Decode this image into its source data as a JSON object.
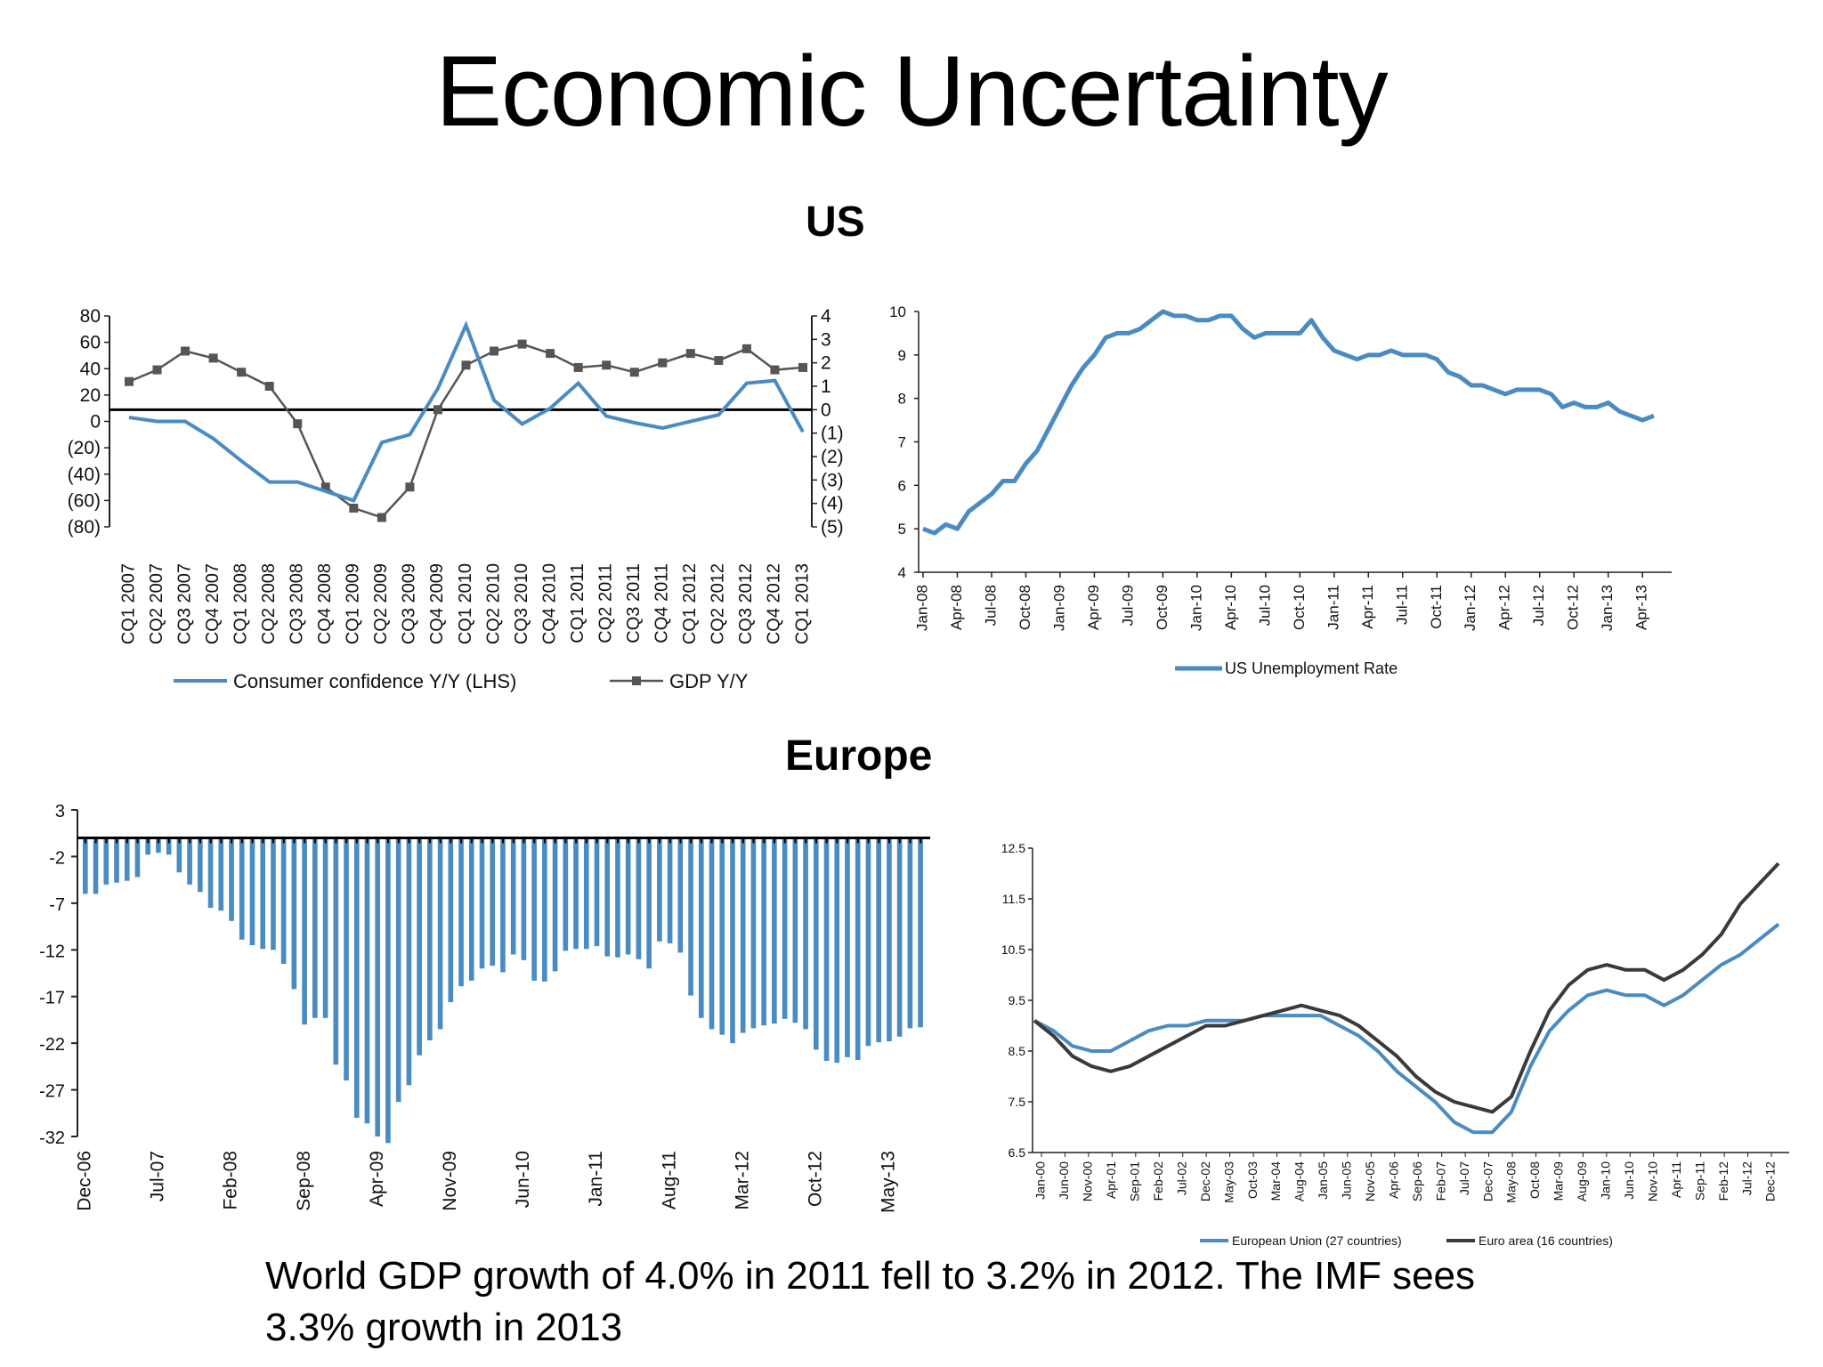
{
  "slide": {
    "title": "Economic Uncertainty",
    "us_heading": "US",
    "europe_heading": "Europe",
    "caption": "World GDP growth of 4.0% in 2011 fell to 3.2% in 2012. The IMF sees 3.3% growth in 2013"
  },
  "colors": {
    "blue": "#4a8bc2",
    "gray": "#555555",
    "dark": "#3a3a3a",
    "axis": "#222222"
  },
  "chart_data": [
    {
      "id": "us-confidence-gdp",
      "type": "line",
      "title": "",
      "categories": [
        "CQ1 2007",
        "CQ2 2007",
        "CQ3 2007",
        "CQ4 2007",
        "CQ1 2008",
        "CQ2 2008",
        "CQ3 2008",
        "CQ4 2008",
        "CQ1 2009",
        "CQ2 2009",
        "CQ3 2009",
        "CQ4 2009",
        "CQ1 2010",
        "CQ2 2010",
        "CQ3 2010",
        "CQ4 2010",
        "CQ1 2011",
        "CQ2 2011",
        "CQ3 2011",
        "CQ4 2011",
        "CQ1 2012",
        "CQ2 2012",
        "CQ3 2012",
        "CQ4 2012",
        "CQ1 2013"
      ],
      "series": [
        {
          "name": "Consumer confidence Y/Y (LHS)",
          "axis": "left",
          "marker": false,
          "values": [
            3,
            0,
            0,
            -13,
            -30,
            -46,
            -46,
            -53,
            -60,
            -16,
            -10,
            25,
            73,
            16,
            -2,
            10,
            29,
            4,
            -1,
            -5,
            0,
            5,
            29,
            31,
            -8
          ]
        },
        {
          "name": "GDP Y/Y",
          "axis": "right",
          "marker": true,
          "values": [
            1.2,
            1.7,
            2.5,
            2.2,
            1.6,
            1.0,
            -0.6,
            -3.3,
            -4.2,
            -4.6,
            -3.3,
            0,
            1.9,
            2.5,
            2.8,
            2.4,
            1.8,
            1.9,
            1.6,
            2.0,
            2.4,
            2.1,
            2.6,
            1.7,
            1.8
          ]
        }
      ],
      "ylim_left": [
        -80,
        80
      ],
      "yticks_left": [
        "80",
        "60",
        "40",
        "20",
        "0",
        "(20)",
        "(40)",
        "(60)",
        "(80)"
      ],
      "ylim_right": [
        -5,
        4
      ],
      "yticks_right": [
        "4",
        "3",
        "2",
        "1",
        "0",
        "(1)",
        "(2)",
        "(3)",
        "(4)",
        "(5)"
      ],
      "legend": [
        "Consumer confidence Y/Y (LHS)",
        "GDP Y/Y"
      ],
      "legend_position": "bottom"
    },
    {
      "id": "us-unemployment",
      "type": "line",
      "title": "",
      "x_ticks": [
        "Jan-08",
        "Apr-08",
        "Jul-08",
        "Oct-08",
        "Jan-09",
        "Apr-09",
        "Jul-09",
        "Oct-09",
        "Jan-10",
        "Apr-10",
        "Jul-10",
        "Oct-10",
        "Jan-11",
        "Apr-11",
        "Jul-11",
        "Oct-11",
        "Jan-12",
        "Apr-12",
        "Jul-12",
        "Oct-12",
        "Jan-13",
        "Apr-13"
      ],
      "series": [
        {
          "name": "US Unemployment Rate",
          "values": [
            5.0,
            4.9,
            5.1,
            5.0,
            5.4,
            5.6,
            5.8,
            6.1,
            6.1,
            6.5,
            6.8,
            7.3,
            7.8,
            8.3,
            8.7,
            9.0,
            9.4,
            9.5,
            9.5,
            9.6,
            9.8,
            10.0,
            9.9,
            9.9,
            9.8,
            9.8,
            9.9,
            9.9,
            9.6,
            9.4,
            9.5,
            9.5,
            9.5,
            9.5,
            9.8,
            9.4,
            9.1,
            9.0,
            8.9,
            9.0,
            9.0,
            9.1,
            9.0,
            9.0,
            9.0,
            8.9,
            8.6,
            8.5,
            8.3,
            8.3,
            8.2,
            8.1,
            8.2,
            8.2,
            8.2,
            8.1,
            7.8,
            7.9,
            7.8,
            7.8,
            7.9,
            7.7,
            7.6,
            7.5,
            7.6
          ]
        }
      ],
      "ylim": [
        4,
        10
      ],
      "yticks": [
        "4",
        "5",
        "6",
        "7",
        "8",
        "9",
        "10"
      ],
      "legend": [
        "US Unemployment Rate"
      ],
      "legend_position": "bottom"
    },
    {
      "id": "europe-confidence",
      "type": "bar",
      "title": "",
      "x_ticks": [
        "Dec-06",
        "Jul-07",
        "Feb-08",
        "Sep-08",
        "Apr-09",
        "Nov-09",
        "Jun-10",
        "Jan-11",
        "Aug-11",
        "Mar-12",
        "Oct-12",
        "May-13"
      ],
      "series": [
        {
          "name": "",
          "values": [
            -6,
            -6,
            -5,
            -4.8,
            -4.6,
            -4.2,
            -1.8,
            -1.6,
            -1.8,
            -3.7,
            -5,
            -5.8,
            -7.5,
            -7.8,
            -8.9,
            -10.9,
            -11.5,
            -11.9,
            -12,
            -13.5,
            -16.2,
            -20,
            -19.3,
            -19.3,
            -24.3,
            -26,
            -30,
            -30.6,
            -32,
            -32.7,
            -28.3,
            -26.5,
            -23.3,
            -21.7,
            -20.5,
            -17.6,
            -15.9,
            -15.3,
            -14,
            -13.7,
            -14.4,
            -12.5,
            -13.1,
            -15.3,
            -15.4,
            -14.3,
            -12.1,
            -11.9,
            -11.9,
            -11.6,
            -12.7,
            -12.8,
            -12.5,
            -13,
            -14,
            -11.1,
            -11.3,
            -12.3,
            -16.9,
            -19.3,
            -20.5,
            -21.1,
            -22,
            -20.9,
            -20.4,
            -20.1,
            -19.9,
            -19.4,
            -19.8,
            -20.5,
            -22.7,
            -23.9,
            -24.1,
            -23.5,
            -23.8,
            -22.3,
            -21.9,
            -21.8,
            -21.3,
            -20.4,
            -20.3
          ]
        }
      ],
      "ylim": [
        -32,
        3
      ],
      "yticks": [
        "3",
        "-2",
        "-7",
        "-12",
        "-17",
        "-22",
        "-27",
        "-32"
      ]
    },
    {
      "id": "europe-unemployment",
      "type": "line",
      "title": "",
      "x_ticks": [
        "Jan-00",
        "Jun-00",
        "Nov-00",
        "Apr-01",
        "Sep-01",
        "Feb-02",
        "Jul-02",
        "Dec-02",
        "May-03",
        "Oct-03",
        "Mar-04",
        "Aug-04",
        "Jan-05",
        "Jun-05",
        "Nov-05",
        "Apr-06",
        "Sep-06",
        "Feb-07",
        "Jul-07",
        "Dec-07",
        "May-08",
        "Oct-08",
        "Mar-09",
        "Aug-09",
        "Jan-10",
        "Jun-10",
        "Nov-10",
        "Apr-11",
        "Sep-11",
        "Feb-12",
        "Jul-12",
        "Dec-12"
      ],
      "series": [
        {
          "name": "European Union (27 countries)",
          "values": [
            9.1,
            8.9,
            8.6,
            8.5,
            8.5,
            8.7,
            8.9,
            9.0,
            9.0,
            9.1,
            9.1,
            9.1,
            9.2,
            9.2,
            9.2,
            9.2,
            9.0,
            8.8,
            8.5,
            8.1,
            7.8,
            7.5,
            7.1,
            6.9,
            6.9,
            7.3,
            8.2,
            8.9,
            9.3,
            9.6,
            9.7,
            9.6,
            9.6,
            9.4,
            9.6,
            9.9,
            10.2,
            10.4,
            10.7,
            11.0
          ]
        },
        {
          "name": "Euro area (16 countries)",
          "values": [
            9.1,
            8.8,
            8.4,
            8.2,
            8.1,
            8.2,
            8.4,
            8.6,
            8.8,
            9.0,
            9.0,
            9.1,
            9.2,
            9.3,
            9.4,
            9.3,
            9.2,
            9.0,
            8.7,
            8.4,
            8.0,
            7.7,
            7.5,
            7.4,
            7.3,
            7.6,
            8.5,
            9.3,
            9.8,
            10.1,
            10.2,
            10.1,
            10.1,
            9.9,
            10.1,
            10.4,
            10.8,
            11.4,
            11.8,
            12.2
          ]
        }
      ],
      "ylim": [
        6.5,
        12.5
      ],
      "yticks": [
        "12.5",
        "11.5",
        "10.5",
        "9.5",
        "8.5",
        "7.5",
        "6.5"
      ],
      "legend": [
        "European Union (27 countries)",
        "Euro area (16 countries)"
      ],
      "legend_position": "bottom"
    }
  ]
}
